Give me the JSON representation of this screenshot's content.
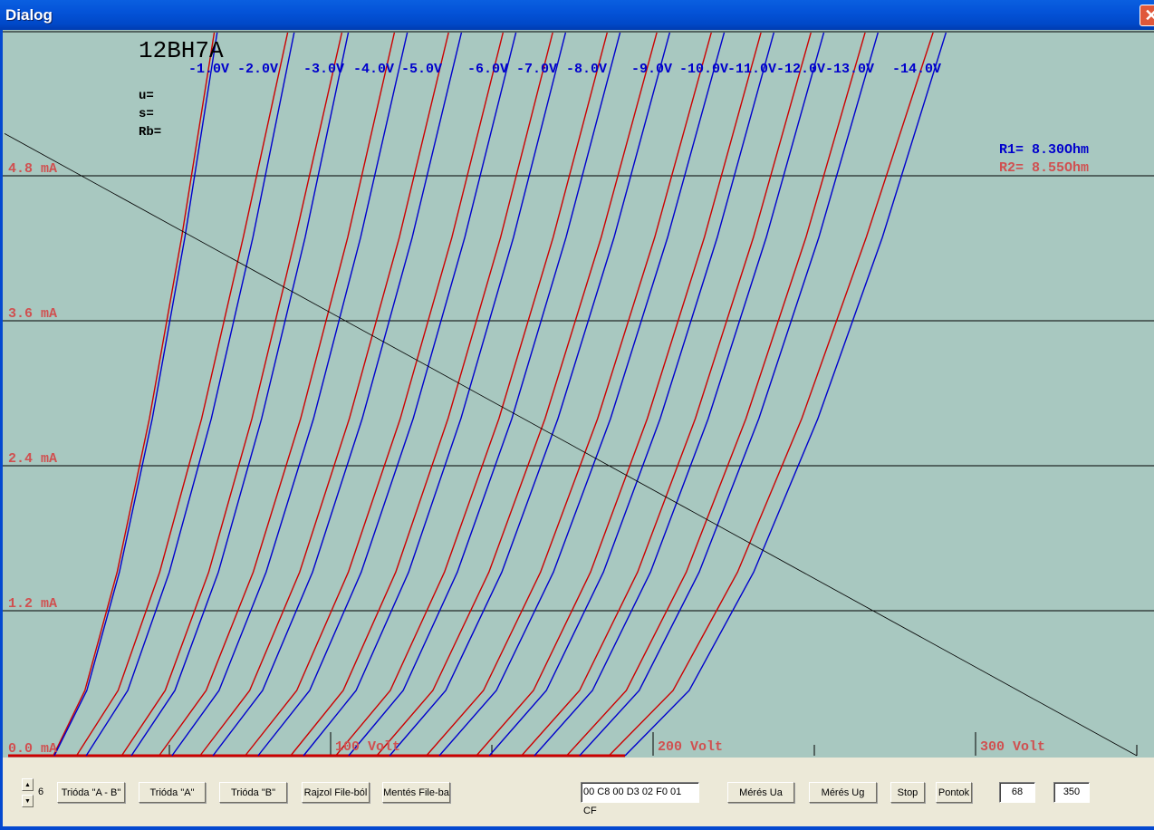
{
  "window": {
    "title": "Dialog",
    "close_icon": "close-icon"
  },
  "plot": {
    "tube": "12BH7A",
    "params": [
      "u=",
      "s=",
      "Rb="
    ],
    "r1": "R1= 8.30Ohm",
    "r2": "R2= 8.55Ohm",
    "colors": {
      "background": "#a8c8c0",
      "series_a": "#0000cc",
      "series_b": "#cc0000",
      "labels_y": "#d05050",
      "grid": "#000000"
    }
  },
  "chart_data": {
    "type": "line",
    "xlabel": "",
    "ylabel": "",
    "xlim": [
      0,
      356
    ],
    "ylim": [
      0,
      6.0
    ],
    "x_tick_labels": [
      {
        "v": 100,
        "label": "100 Volt"
      },
      {
        "v": 200,
        "label": "200 Volt"
      },
      {
        "v": 300,
        "label": "300 Volt"
      }
    ],
    "x_minor_ticks": [
      50,
      150,
      250,
      350
    ],
    "y_tick_labels": [
      {
        "v": 0,
        "label": "0.0 mA"
      },
      {
        "v": 1.2,
        "label": "1.2 mA"
      },
      {
        "v": 2.4,
        "label": "2.4 mA"
      },
      {
        "v": 3.6,
        "label": "3.6 mA"
      },
      {
        "v": 4.8,
        "label": "4.8 mA"
      }
    ],
    "grid_y": true,
    "grid_labels": [
      "-1.0V",
      "-2.0V",
      "-3.0V",
      "-4.0V",
      "-5.0V",
      "-6.0V",
      "-7.0V",
      "-8.0V",
      "-9.0V",
      "-10.0V",
      "-11.0V",
      "-12.0V",
      "-13.0V",
      "-14.0V"
    ],
    "ia_mA": [
      0,
      0.54,
      1.52,
      2.79,
      4.29,
      6.0
    ],
    "series_a_ua": [
      [
        14.3,
        24.4,
        34.5,
        44.7,
        54.8,
        64.9
      ],
      [
        24.2,
        37.1,
        50.0,
        63.0,
        75.9,
        88.8
      ],
      [
        38.2,
        51.7,
        65.2,
        78.6,
        92.1,
        105.6
      ],
      [
        50.8,
        65.4,
        80.0,
        94.7,
        109.3,
        123.9
      ],
      [
        63.5,
        78.9,
        94.4,
        109.8,
        125.3,
        140.7
      ],
      [
        77.5,
        93.5,
        109.5,
        125.6,
        141.6,
        157.6
      ],
      [
        91.6,
        107.9,
        124.2,
        140.4,
        156.7,
        173.0
      ],
      [
        105.6,
        122.5,
        139.3,
        156.2,
        173.0,
        189.9
      ],
      [
        118.3,
        135.7,
        153.1,
        170.5,
        187.9,
        205.3
      ],
      [
        133.7,
        151.4,
        169.1,
        186.8,
        204.5,
        222.2
      ],
      [
        149.2,
        166.9,
        184.6,
        202.2,
        219.9,
        237.6
      ],
      [
        163.2,
        181.2,
        199.2,
        217.1,
        235.1,
        253.1
      ],
      [
        177.2,
        195.7,
        214.3,
        232.8,
        251.4,
        269.9
      ],
      [
        191.3,
        211.2,
        231.2,
        251.1,
        271.1,
        291.0
      ]
    ],
    "series_b_ua": [
      [
        14.0,
        23.8,
        33.8,
        43.8,
        53.8,
        64.0
      ],
      [
        21.2,
        34.1,
        47.0,
        60.0,
        72.9,
        86.8
      ],
      [
        35.2,
        48.7,
        62.2,
        75.6,
        89.1,
        103.6
      ],
      [
        46.8,
        61.4,
        76.0,
        90.7,
        105.3,
        119.9
      ],
      [
        59.5,
        74.9,
        90.4,
        105.8,
        121.3,
        136.7
      ],
      [
        73.5,
        89.5,
        105.5,
        121.6,
        137.6,
        153.6
      ],
      [
        87.6,
        103.9,
        120.2,
        136.4,
        152.7,
        169.0
      ],
      [
        101.6,
        118.5,
        135.3,
        152.2,
        169.0,
        185.9
      ],
      [
        114.3,
        131.7,
        149.1,
        166.5,
        183.9,
        201.3
      ],
      [
        129.7,
        147.4,
        165.1,
        182.8,
        200.5,
        218.2
      ],
      [
        145.2,
        162.9,
        180.6,
        198.2,
        215.9,
        233.6
      ],
      [
        159.2,
        177.2,
        195.2,
        213.1,
        231.1,
        249.1
      ],
      [
        173.2,
        191.7,
        210.3,
        228.8,
        247.4,
        265.9
      ],
      [
        186.3,
        206.2,
        226.2,
        246.1,
        266.1,
        287.0
      ]
    ],
    "load_line": {
      "ua": [
        0,
        350
      ],
      "ia_mA": [
        5.15,
        0
      ]
    }
  },
  "toolbar": {
    "spin_value": "6",
    "buttons": [
      "Trióda \"A - B\"",
      "Trióda  \"A\"",
      "Trióda  \"B\"",
      "Rajzol File-ból",
      "Mentés File-ba"
    ],
    "hex_field": "00 C8 00 D3 02 F0 01 CF",
    "measure_ua": "Mérés Ua",
    "measure_ug": "Mérés Ug",
    "stop": "Stop",
    "points": "Pontok",
    "field_r": "68",
    "field_v": "350"
  }
}
